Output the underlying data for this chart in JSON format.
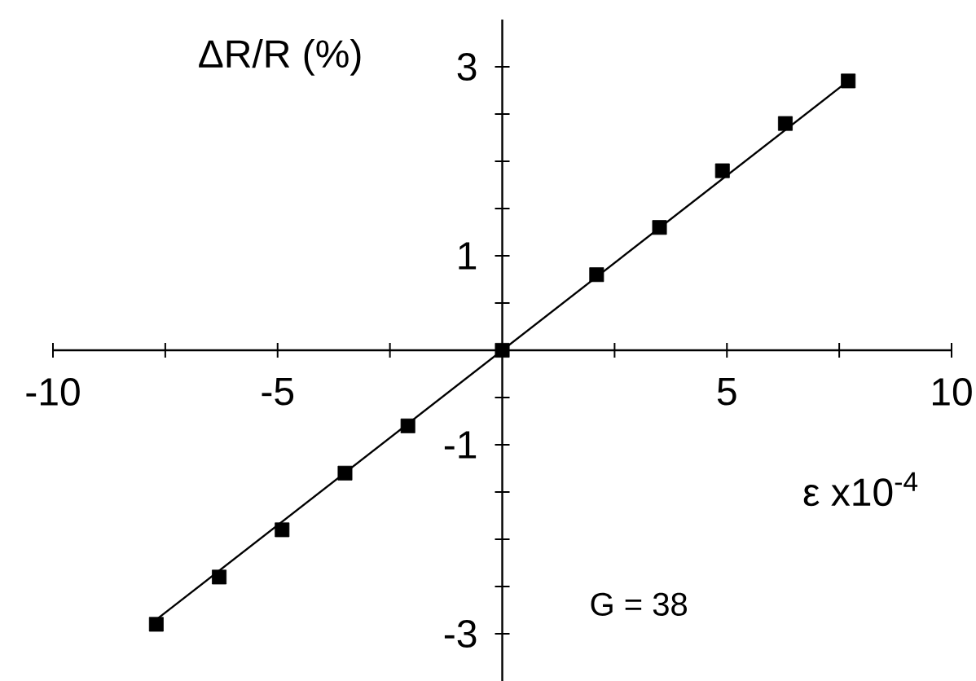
{
  "chart_data": {
    "type": "scatter",
    "xlabel": "ε x10$^{-4}$",
    "ylabel": "ΔR/R (%)",
    "annotations": [
      "G = 38"
    ],
    "xlim": [
      -10,
      10
    ],
    "ylim": [
      -3.5,
      3.5
    ],
    "xticks": [
      -10,
      {
        "value": -7.5,
        "label": null
      },
      -5,
      {
        "value": -2.5,
        "label": null
      },
      {
        "value": 2.5,
        "label": null
      },
      5,
      {
        "value": 7.5,
        "label": null
      },
      10
    ],
    "yticks": [
      -3,
      {
        "value": -2.5,
        "label": null
      },
      {
        "value": -2,
        "label": null
      },
      {
        "value": -1.5,
        "label": null
      },
      -1,
      {
        "value": -0.5,
        "label": null
      },
      {
        "value": 0.5,
        "label": null
      },
      1,
      {
        "value": 1.5,
        "label": null
      },
      {
        "value": 2,
        "label": null
      },
      {
        "value": 2.5,
        "label": null
      },
      3
    ],
    "marker": "square",
    "series": [
      {
        "color": "#000000",
        "x": [
          -7.7,
          -6.3,
          -4.9,
          -3.5,
          -2.1,
          0,
          2.1,
          3.5,
          4.9,
          6.3,
          7.7
        ],
        "values": [
          -2.9,
          -2.4,
          -1.9,
          -1.3,
          -0.8,
          0,
          0.8,
          1.3,
          1.9,
          2.4,
          2.85
        ]
      },
      {
        "type": "line",
        "color": "#000000",
        "marker": "none",
        "x": [
          -7.7,
          7.7
        ],
        "values": [
          -2.85,
          2.85
        ]
      }
    ]
  }
}
